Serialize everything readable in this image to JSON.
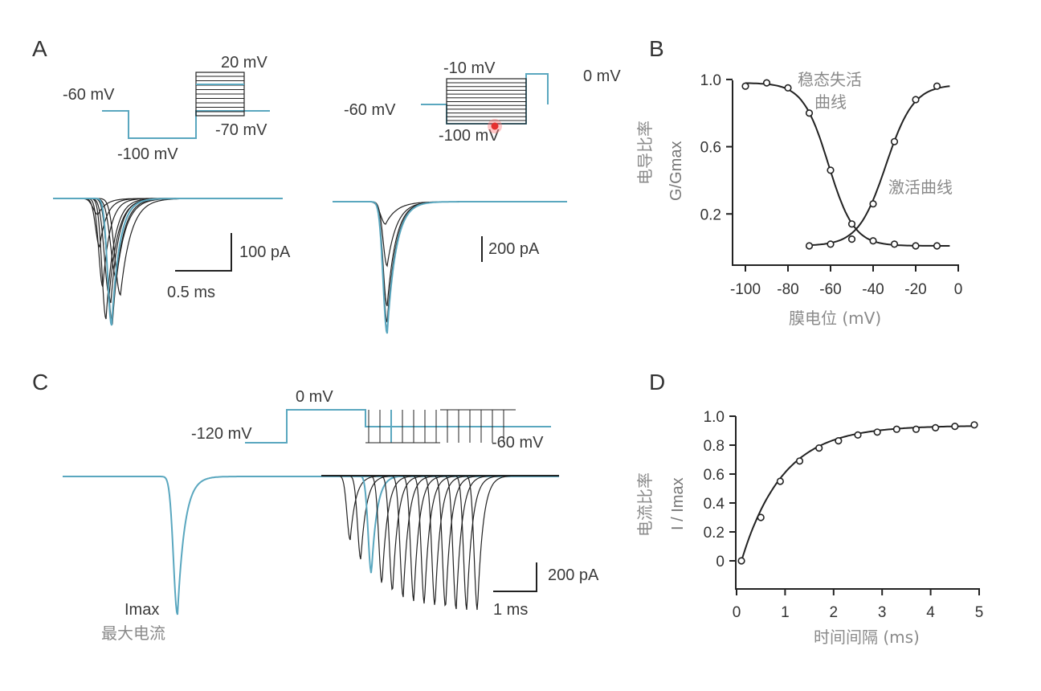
{
  "colors": {
    "trace_black": "#222222",
    "trace_blue": "#5aa7bf",
    "text_gray": "#8a8a8a",
    "marker": "#e53030"
  },
  "panelA": {
    "label": "A",
    "left_protocol": {
      "hold": "-60 mV",
      "pre": "-100 mV",
      "top": "20 mV",
      "bottom": "-70 mV"
    },
    "right_protocol": {
      "hold": "-60 mV",
      "top": "-10 mV",
      "bottom": "-100 mV",
      "test": "0 mV"
    },
    "left_scale": {
      "y": "100 pA",
      "x": "0.5 ms"
    },
    "right_scale": {
      "y": "200 pA"
    }
  },
  "panelB": {
    "label": "B",
    "ylabel_zh": "电导比率",
    "ylabel": "G/Gmax",
    "xlabel": "膜电位 (mV)",
    "xticks": [
      "-100",
      "-80",
      "-60",
      "-40",
      "-20",
      "0"
    ],
    "yticks": [
      "1.0",
      "0.6",
      "0.2"
    ],
    "ann_inactivation": [
      "稳态失活",
      "曲线"
    ],
    "ann_activation": "激活曲线"
  },
  "panelC": {
    "label": "C",
    "proto": {
      "hold": "-120 mV",
      "step": "0 mV",
      "end": "-60 mV"
    },
    "imax": "Imax",
    "imax_zh": "最大电流",
    "scale": {
      "y": "200 pA",
      "x": "1 ms"
    }
  },
  "panelD": {
    "label": "D",
    "ylabel_zh": "电流比率",
    "ylabel": "I / Imax",
    "xlabel": "时间间隔 (ms)",
    "xticks": [
      "0",
      "1",
      "2",
      "3",
      "4",
      "5"
    ],
    "yticks": [
      "1.0",
      "0.8",
      "0.6",
      "0.4",
      "0.2",
      "0"
    ]
  },
  "chart_data": [
    {
      "type": "scatter",
      "panel": "B",
      "xlabel": "膜电位 (mV)",
      "ylabel": "G/Gmax",
      "xlim": [
        -100,
        0
      ],
      "ylim": [
        0,
        1.0
      ],
      "series": [
        {
          "name": "稳态失活曲线",
          "x": [
            -100,
            -90,
            -80,
            -70,
            -60,
            -50,
            -40,
            -30,
            -20,
            -10
          ],
          "y": [
            0.96,
            0.98,
            0.95,
            0.8,
            0.46,
            0.14,
            0.04,
            0.02,
            0.01,
            0.01
          ]
        },
        {
          "name": "激活曲线",
          "x": [
            -70,
            -60,
            -50,
            -40,
            -30,
            -20,
            -10
          ],
          "y": [
            0.01,
            0.02,
            0.05,
            0.26,
            0.63,
            0.88,
            0.96
          ]
        }
      ]
    },
    {
      "type": "scatter",
      "panel": "D",
      "xlabel": "时间间隔 (ms)",
      "ylabel": "I / Imax",
      "xlim": [
        0,
        5
      ],
      "ylim": [
        0,
        1.0
      ],
      "series": [
        {
          "x": [
            0.1,
            0.5,
            0.9,
            1.3,
            1.7,
            2.1,
            2.5,
            2.9,
            3.3,
            3.7,
            4.1,
            4.5,
            4.9
          ],
          "y": [
            0.0,
            0.3,
            0.55,
            0.69,
            0.78,
            0.83,
            0.87,
            0.89,
            0.91,
            0.91,
            0.92,
            0.93,
            0.94
          ]
        }
      ]
    }
  ]
}
